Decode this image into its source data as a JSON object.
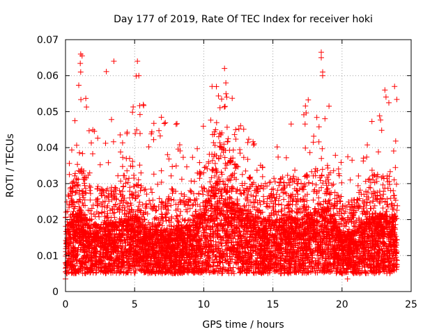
{
  "chart_data": {
    "type": "scatter",
    "title": "Day 177 of 2019, Rate Of TEC Index for receiver hoki",
    "xlabel": "GPS time / hours",
    "ylabel": "ROTI / TECUs",
    "xlim": [
      0,
      25
    ],
    "ylim": [
      0,
      0.07
    ],
    "xticks": [
      0,
      5,
      10,
      15,
      20,
      25
    ],
    "xtick_labels": [
      "0",
      "5",
      "10",
      "15",
      "20",
      "25"
    ],
    "yticks": [
      0,
      0.01,
      0.02,
      0.03,
      0.04,
      0.05,
      0.06,
      0.07
    ],
    "ytick_labels": [
      "0",
      "0.01",
      "0.02",
      "0.03",
      "0.04",
      "0.05",
      "0.06",
      "0.07"
    ],
    "grid": true,
    "marker": "+",
    "color": "#ff0000",
    "data_x_range": [
      0,
      24
    ],
    "series_profile": {
      "hours": [
        0,
        1,
        2,
        3,
        4,
        5,
        6,
        7,
        8,
        9,
        10,
        11,
        12,
        13,
        14,
        15,
        16,
        17,
        18,
        19,
        20,
        21,
        22,
        23,
        24
      ],
      "typical_roti": [
        0.012,
        0.016,
        0.013,
        0.013,
        0.014,
        0.015,
        0.012,
        0.012,
        0.012,
        0.013,
        0.016,
        0.022,
        0.018,
        0.015,
        0.014,
        0.014,
        0.015,
        0.014,
        0.016,
        0.016,
        0.011,
        0.012,
        0.015,
        0.015,
        0.014
      ],
      "max_roti": [
        0.031,
        0.066,
        0.047,
        0.064,
        0.045,
        0.064,
        0.05,
        0.053,
        0.048,
        0.038,
        0.05,
        0.062,
        0.058,
        0.047,
        0.04,
        0.048,
        0.05,
        0.045,
        0.066,
        0.053,
        0.035,
        0.042,
        0.047,
        0.056,
        0.057
      ]
    },
    "notable_points": [
      {
        "x": 1.1,
        "y": 0.066
      },
      {
        "x": 1.2,
        "y": 0.0655
      },
      {
        "x": 1.1,
        "y": 0.061
      },
      {
        "x": 3.5,
        "y": 0.064
      },
      {
        "x": 5.2,
        "y": 0.064
      },
      {
        "x": 5.3,
        "y": 0.06
      },
      {
        "x": 11.5,
        "y": 0.062
      },
      {
        "x": 11.6,
        "y": 0.058
      },
      {
        "x": 10.6,
        "y": 0.057
      },
      {
        "x": 18.5,
        "y": 0.0665
      },
      {
        "x": 18.5,
        "y": 0.065
      },
      {
        "x": 18.6,
        "y": 0.061
      },
      {
        "x": 18.6,
        "y": 0.06
      },
      {
        "x": 23.8,
        "y": 0.057
      },
      {
        "x": 23.1,
        "y": 0.056
      },
      {
        "x": 0.0,
        "y": 0.0035
      },
      {
        "x": 20.4,
        "y": 0.0035
      }
    ]
  }
}
